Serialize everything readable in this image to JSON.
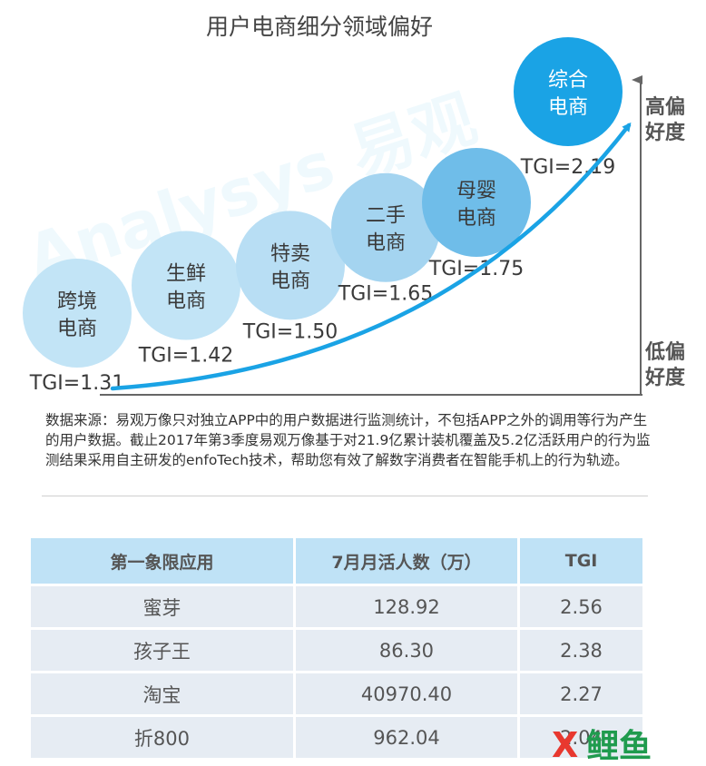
{
  "chart_data": {
    "type": "bubble",
    "title": "用户电商细分领域偏好",
    "categories": [
      "跨境\n电商",
      "生鲜\n电商",
      "特卖\n电商",
      "二手\n电商",
      "母婴\n电商",
      "综合\n电商"
    ],
    "tgi_labels": [
      "TGI=1.31",
      "TGI=1.42",
      "TGI=1.50",
      "TGI=1.65",
      "TGI=1.75",
      "TGI=2.19"
    ],
    "values": [
      1.31,
      1.42,
      1.5,
      1.65,
      1.75,
      2.19
    ],
    "axis_high": "高偏\n好度",
    "axis_low": "低偏\n好度",
    "colors": [
      "#c2e4f6",
      "#c2e4f6",
      "#b8def4",
      "#a4d4f0",
      "#6fbde9",
      "#1aa3e5"
    ],
    "curve_color": "#1aa3e5",
    "watermark": "Analysys 易观"
  },
  "note": "数据来源：易观万像只对独立APP中的用户数据进行监测统计，不包括APP之外的调用等行为产生的用户数据。截止2017年第3季度易观万像基于对21.9亿累计装机覆盖及5.2亿活跃用户的行为监测结果采用自主研发的enfoTech技术，帮助您有效了解数字消费者在智能手机上的行为轨迹。",
  "table": {
    "headers": [
      "第一象限应用",
      "7月月活人数（万）",
      "TGI"
    ],
    "rows": [
      [
        "蜜芽",
        "128.92",
        "2.56"
      ],
      [
        "孩子王",
        "86.30",
        "2.38"
      ],
      [
        "淘宝",
        "40970.40",
        "2.27"
      ],
      [
        "折800",
        "962.04",
        "2.04"
      ]
    ]
  },
  "logo": {
    "text": "X鲤鱼",
    "colors": [
      "#e8382f",
      "#1f9b4e"
    ]
  }
}
